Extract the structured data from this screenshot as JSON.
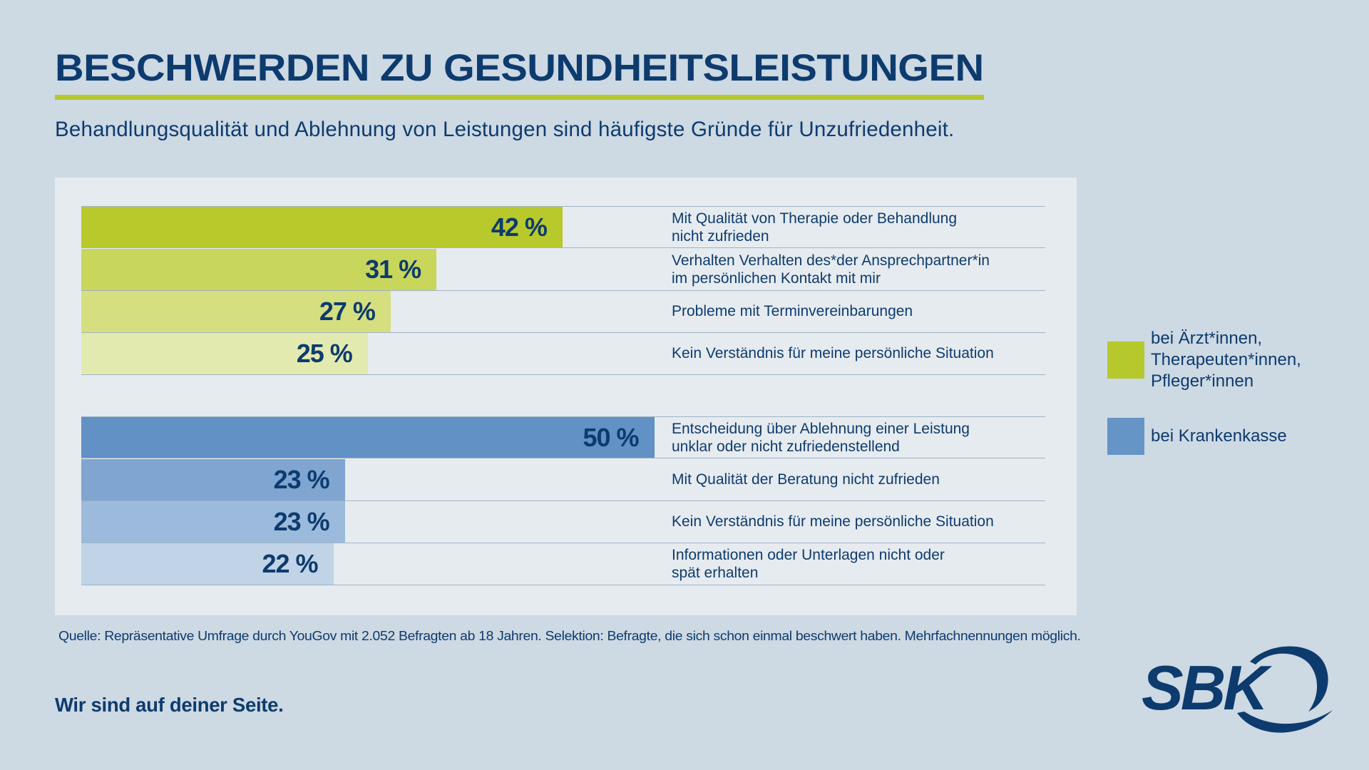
{
  "header": {
    "title": "BESCHWERDEN ZU GESUNDHEITSLEISTUNGEN",
    "subtitle": "Behandlungsqualität und Ablehnung von Leistungen sind häufigste Gründe für Unzufriedenheit."
  },
  "colors": {
    "accent_green": "#b5c82c",
    "accent_blue": "#6594c7",
    "text": "#0d3b6e",
    "background": "#cdd9e3",
    "panel": "#e6ebf0"
  },
  "chart_data": {
    "type": "bar",
    "orientation": "horizontal",
    "title": "BESCHWERDEN ZU GESUNDHEITSLEISTUNGEN",
    "subtitle": "Behandlungsqualität und Ablehnung von Leistungen sind häufigste Gründe für Unzufriedenheit.",
    "unit": "%",
    "xlim": [
      0,
      100
    ],
    "grid": false,
    "legend_position": "right",
    "groups": [
      {
        "name": "bei Ärzt*innen, Therapeuten*innen, Pfleger*innen",
        "legend_lines": [
          "bei Ärzt*innen,",
          "Therapeuten*innen,",
          "Pfleger*innen"
        ],
        "legend_color": "#b5c82c",
        "items": [
          {
            "label_lines": [
              "Mit Qualität von Therapie oder Behandlung",
              "nicht zufrieden"
            ],
            "value": 42,
            "value_label": "42 %",
            "color": "#b8c92b"
          },
          {
            "label_lines": [
              "Verhalten Verhalten des*der Ansprechpartner*in",
              "im persönlichen Kontakt mit mir"
            ],
            "value": 31,
            "value_label": "31 %",
            "color": "#c8d65b"
          },
          {
            "label_lines": [
              "Probleme mit Terminvereinbarungen"
            ],
            "value": 27,
            "value_label": "27 %",
            "color": "#d5df80"
          },
          {
            "label_lines": [
              "Kein Verständnis für meine persönliche Situation"
            ],
            "value": 25,
            "value_label": "25 %",
            "color": "#e3eab0"
          }
        ]
      },
      {
        "name": "bei Krankenkasse",
        "legend_lines": [
          "bei Krankenkasse"
        ],
        "legend_color": "#6594c7",
        "items": [
          {
            "label_lines": [
              "Entscheidung über Ablehnung einer Leistung",
              "unklar oder nicht zufriedenstellend"
            ],
            "value": 50,
            "value_label": "50 %",
            "color": "#6191c5"
          },
          {
            "label_lines": [
              "Mit Qualität der Beratung nicht zufrieden"
            ],
            "value": 23,
            "value_label": "23 %",
            "color": "#7fa5d0"
          },
          {
            "label_lines": [
              "Kein Verständnis für meine persönliche Situation"
            ],
            "value": 23,
            "value_label": "23 %",
            "color": "#9cbadb"
          },
          {
            "label_lines": [
              "Informationen oder Unterlagen nicht oder",
              "spät erhalten"
            ],
            "value": 22,
            "value_label": "22 %",
            "color": "#c1d4e7"
          }
        ]
      }
    ]
  },
  "footer": {
    "source": "Quelle: Repräsentative Umfrage durch YouGov mit 2.052 Befragten ab 18 Jahren. Selektion: Befragte, die sich schon einmal beschwert haben. Mehrfachnennungen möglich.",
    "tagline": "Wir sind auf deiner Seite.",
    "logo_text": "SBK",
    "logo_icon": "sbk-logo-icon"
  }
}
